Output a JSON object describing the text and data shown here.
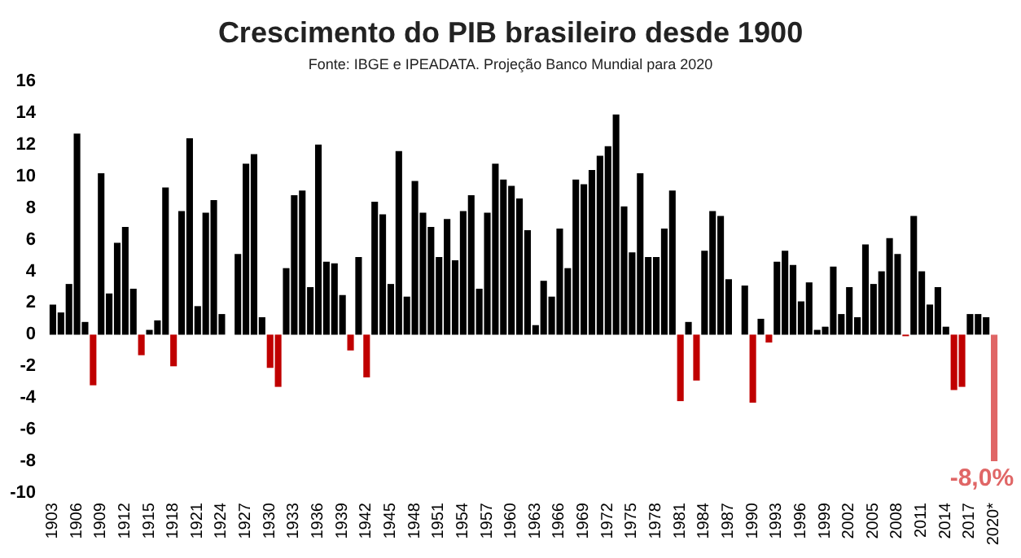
{
  "chart_data": {
    "type": "bar",
    "title": "Crescimento do PIB brasileiro desde 1900",
    "subtitle": "Fonte: IBGE e IPEADATA. Projeção Banco Mundial para 2020",
    "categories": [
      "1903",
      null,
      null,
      "1906",
      null,
      null,
      "1909",
      null,
      null,
      "1912",
      null,
      null,
      "1915",
      null,
      null,
      "1918",
      null,
      null,
      "1921",
      null,
      null,
      "1924",
      null,
      null,
      "1927",
      null,
      null,
      "1930",
      null,
      null,
      "1933",
      null,
      null,
      "1936",
      null,
      null,
      "1939",
      null,
      null,
      "1942",
      null,
      null,
      "1945",
      null,
      null,
      "1948",
      null,
      null,
      "1951",
      null,
      null,
      "1954",
      null,
      null,
      "1957",
      null,
      null,
      "1960",
      null,
      null,
      "1963",
      null,
      null,
      "1966",
      null,
      null,
      "1969",
      null,
      null,
      "1972",
      null,
      null,
      "1975",
      null,
      null,
      "1978",
      null,
      null,
      "1981",
      null,
      null,
      "1984",
      null,
      null,
      "1987",
      null,
      null,
      "1990",
      null,
      null,
      "1993",
      null,
      null,
      "1996",
      null,
      null,
      "1999",
      null,
      null,
      "2002",
      null,
      null,
      "2005",
      null,
      null,
      "2008",
      null,
      null,
      "2011",
      null,
      null,
      "2014",
      null,
      null,
      "2017",
      null,
      null,
      "2020*"
    ],
    "values": [
      1.9,
      1.4,
      3.2,
      12.7,
      0.8,
      -3.2,
      10.2,
      2.6,
      5.8,
      6.8,
      2.9,
      -1.3,
      0.3,
      0.9,
      9.3,
      -2.0,
      7.8,
      12.4,
      1.8,
      7.7,
      8.5,
      1.3,
      0,
      5.1,
      10.8,
      11.4,
      1.1,
      -2.1,
      -3.3,
      4.2,
      8.8,
      9.1,
      3.0,
      12.0,
      4.6,
      4.5,
      2.5,
      -1.0,
      4.9,
      -2.7,
      8.4,
      7.6,
      3.2,
      11.6,
      2.4,
      9.7,
      7.7,
      6.8,
      4.9,
      7.3,
      4.7,
      7.8,
      8.8,
      2.9,
      7.7,
      10.8,
      9.8,
      9.4,
      8.6,
      6.6,
      0.6,
      3.4,
      2.4,
      6.7,
      4.2,
      9.8,
      9.5,
      10.4,
      11.3,
      11.9,
      13.9,
      8.1,
      5.2,
      10.2,
      4.9,
      4.9,
      6.7,
      9.1,
      -4.2,
      0.8,
      -2.9,
      5.3,
      7.8,
      7.5,
      3.5,
      0,
      3.1,
      -4.3,
      1.0,
      -0.5,
      4.6,
      5.3,
      4.4,
      2.1,
      3.3,
      0.3,
      0.5,
      4.3,
      1.3,
      3.0,
      1.1,
      5.7,
      3.2,
      4.0,
      6.1,
      5.1,
      -0.1,
      7.5,
      4.0,
      1.9,
      3.0,
      0.5,
      -3.5,
      -3.3,
      1.3,
      1.3,
      1.1,
      -8.0
    ],
    "colors": [
      "#000000",
      "#000000",
      "#000000",
      "#000000",
      "#000000",
      "#c00000",
      "#000000",
      "#000000",
      "#000000",
      "#000000",
      "#000000",
      "#c00000",
      "#000000",
      "#000000",
      "#000000",
      "#c00000",
      "#000000",
      "#000000",
      "#000000",
      "#000000",
      "#000000",
      "#000000",
      "#000000",
      "#000000",
      "#000000",
      "#000000",
      "#000000",
      "#c00000",
      "#c00000",
      "#000000",
      "#000000",
      "#000000",
      "#000000",
      "#000000",
      "#000000",
      "#000000",
      "#000000",
      "#c00000",
      "#000000",
      "#c00000",
      "#000000",
      "#000000",
      "#000000",
      "#000000",
      "#000000",
      "#000000",
      "#000000",
      "#000000",
      "#000000",
      "#000000",
      "#000000",
      "#000000",
      "#000000",
      "#000000",
      "#000000",
      "#000000",
      "#000000",
      "#000000",
      "#000000",
      "#000000",
      "#000000",
      "#000000",
      "#000000",
      "#000000",
      "#000000",
      "#000000",
      "#000000",
      "#000000",
      "#000000",
      "#000000",
      "#000000",
      "#000000",
      "#000000",
      "#000000",
      "#000000",
      "#000000",
      "#000000",
      "#000000",
      "#c00000",
      "#000000",
      "#c00000",
      "#000000",
      "#000000",
      "#000000",
      "#000000",
      "#000000",
      "#000000",
      "#c00000",
      "#000000",
      "#c00000",
      "#000000",
      "#000000",
      "#000000",
      "#000000",
      "#000000",
      "#000000",
      "#000000",
      "#000000",
      "#000000",
      "#000000",
      "#000000",
      "#000000",
      "#000000",
      "#000000",
      "#000000",
      "#000000",
      "#c00000",
      "#000000",
      "#000000",
      "#000000",
      "#000000",
      "#000000",
      "#c00000",
      "#c00000",
      "#000000",
      "#000000",
      "#000000",
      "#e06666"
    ],
    "value_labels": [
      null,
      null,
      null,
      null,
      null,
      null,
      null,
      null,
      null,
      null,
      null,
      null,
      null,
      null,
      null,
      null,
      null,
      null,
      null,
      null,
      null,
      null,
      null,
      null,
      null,
      null,
      null,
      null,
      null,
      null,
      null,
      null,
      null,
      null,
      null,
      null,
      null,
      null,
      null,
      null,
      null,
      null,
      null,
      null,
      null,
      null,
      null,
      null,
      null,
      null,
      null,
      null,
      null,
      null,
      null,
      null,
      null,
      null,
      null,
      null,
      null,
      null,
      null,
      null,
      null,
      null,
      null,
      null,
      null,
      null,
      null,
      null,
      null,
      null,
      null,
      null,
      null,
      null,
      null,
      null,
      null,
      null,
      null,
      null,
      null,
      null,
      null,
      null,
      null,
      null,
      null,
      null,
      null,
      null,
      null,
      null,
      null,
      null,
      null,
      null,
      null,
      null,
      null,
      null,
      null,
      null,
      null,
      null,
      null,
      null,
      null,
      null,
      null,
      null,
      null,
      null,
      null,
      "-8,0%"
    ],
    "ylim": [
      -10,
      16
    ],
    "yticks": [
      -10,
      -8,
      -6,
      -4,
      -2,
      0,
      2,
      4,
      6,
      8,
      10,
      12,
      14,
      16
    ],
    "grid": false
  }
}
